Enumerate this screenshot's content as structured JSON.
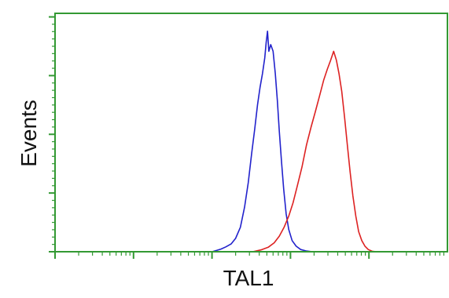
{
  "chart_data": {
    "type": "line",
    "xlabel": "TAL1",
    "ylabel": "Events",
    "x_scale": "log",
    "xlim": [
      1,
      100000
    ],
    "ylim": [
      0,
      1.0
    ],
    "grid": false,
    "legend": "none",
    "axis_color": "#339933",
    "series": [
      {
        "color": "#2222cc",
        "points": [
          [
            100,
            0.0
          ],
          [
            115,
            0.006
          ],
          [
            130,
            0.012
          ],
          [
            150,
            0.022
          ],
          [
            175,
            0.035
          ],
          [
            200,
            0.06
          ],
          [
            230,
            0.11
          ],
          [
            260,
            0.2
          ],
          [
            290,
            0.31
          ],
          [
            320,
            0.44
          ],
          [
            350,
            0.55
          ],
          [
            380,
            0.66
          ],
          [
            410,
            0.74
          ],
          [
            440,
            0.8
          ],
          [
            470,
            0.87
          ],
          [
            490,
            0.94
          ],
          [
            510,
            0.99
          ],
          [
            530,
            0.9
          ],
          [
            560,
            0.93
          ],
          [
            600,
            0.9
          ],
          [
            640,
            0.8
          ],
          [
            680,
            0.68
          ],
          [
            720,
            0.54
          ],
          [
            770,
            0.4
          ],
          [
            820,
            0.28
          ],
          [
            880,
            0.17
          ],
          [
            950,
            0.1
          ],
          [
            1050,
            0.05
          ],
          [
            1180,
            0.025
          ],
          [
            1350,
            0.01
          ],
          [
            1600,
            0.003
          ],
          [
            1900,
            0.0
          ]
        ]
      },
      {
        "color": "#dd2222",
        "points": [
          [
            330,
            0.0
          ],
          [
            420,
            0.008
          ],
          [
            520,
            0.02
          ],
          [
            620,
            0.04
          ],
          [
            720,
            0.07
          ],
          [
            830,
            0.11
          ],
          [
            950,
            0.16
          ],
          [
            1080,
            0.22
          ],
          [
            1230,
            0.3
          ],
          [
            1400,
            0.38
          ],
          [
            1600,
            0.48
          ],
          [
            1830,
            0.56
          ],
          [
            2080,
            0.63
          ],
          [
            2350,
            0.7
          ],
          [
            2650,
            0.77
          ],
          [
            2950,
            0.82
          ],
          [
            3250,
            0.86
          ],
          [
            3550,
            0.9
          ],
          [
            3850,
            0.86
          ],
          [
            4150,
            0.8
          ],
          [
            4500,
            0.72
          ],
          [
            4900,
            0.6
          ],
          [
            5300,
            0.48
          ],
          [
            5750,
            0.36
          ],
          [
            6250,
            0.25
          ],
          [
            6800,
            0.16
          ],
          [
            7400,
            0.09
          ],
          [
            8100,
            0.05
          ],
          [
            8900,
            0.025
          ],
          [
            9800,
            0.01
          ],
          [
            11000,
            0.002
          ],
          [
            12500,
            0.0
          ]
        ]
      }
    ]
  }
}
